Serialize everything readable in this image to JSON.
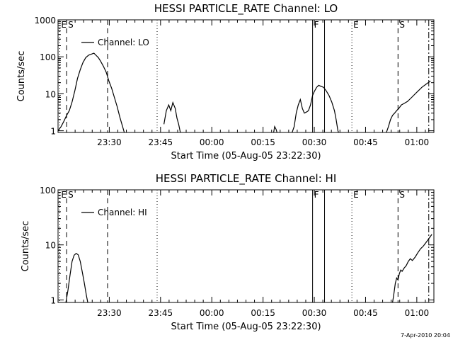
{
  "footer": {
    "timestamp": "7-Apr-2010 20:04"
  },
  "chart_data": [
    {
      "type": "line",
      "title": "HESSI PARTICLE_RATE Channel: LO",
      "xlabel": "Start Time (05-Aug-05 23:22:30)",
      "ylabel": "Counts/sec",
      "yscale": "log",
      "xlim": [
        -7.5,
        102.5
      ],
      "ylim": [
        0.9,
        1000
      ],
      "x_ticks": [
        {
          "x": 7.5,
          "label": "23:30"
        },
        {
          "x": 22.5,
          "label": "23:45"
        },
        {
          "x": 37.5,
          "label": "00:00"
        },
        {
          "x": 52.5,
          "label": "00:15"
        },
        {
          "x": 67.5,
          "label": "00:30"
        },
        {
          "x": 82.5,
          "label": "00:45"
        },
        {
          "x": 97.5,
          "label": "01:00"
        }
      ],
      "y_ticks": [
        {
          "y": 1,
          "label": "1"
        },
        {
          "y": 10,
          "label": "10"
        },
        {
          "y": 100,
          "label": "100"
        },
        {
          "y": 1000,
          "label": "1000"
        }
      ],
      "legend": {
        "position": "top-left",
        "entries": [
          "Channel: LO"
        ]
      },
      "markers": [
        {
          "x": -7.0,
          "label": "E",
          "style": "dotted"
        },
        {
          "x": -5.0,
          "label": "S",
          "style": "dashed"
        },
        {
          "x": 7.0,
          "label": "",
          "style": "dashed"
        },
        {
          "x": 21.5,
          "label": "",
          "style": "dotted"
        },
        {
          "x": 67.0,
          "label": "F",
          "style": "solid"
        },
        {
          "x": 70.5,
          "label": "",
          "style": "solid"
        },
        {
          "x": 78.5,
          "label": "E",
          "style": "dotted"
        },
        {
          "x": 92.0,
          "label": "S",
          "style": "dashed"
        },
        {
          "x": 101.0,
          "label": "",
          "style": "dashdot"
        }
      ],
      "series": [
        {
          "name": "Channel: LO",
          "segments": [
            [
              [
                -7.5,
                1
              ],
              [
                -6.6,
                1.3
              ],
              [
                -5.8,
                1.8
              ],
              [
                -5,
                2.6
              ],
              [
                -4.2,
                3.5
              ],
              [
                -3.4,
                6
              ],
              [
                -2.6,
                12
              ],
              [
                -1.8,
                26
              ],
              [
                -1,
                45
              ],
              [
                -0.2,
                70
              ],
              [
                0.6,
                95
              ],
              [
                1.4,
                110
              ],
              [
                2.2,
                118
              ],
              [
                3,
                125
              ],
              [
                3.6,
                110
              ],
              [
                4.3,
                95
              ],
              [
                5,
                75
              ],
              [
                5.8,
                55
              ],
              [
                6.6,
                38
              ],
              [
                7.4,
                22
              ],
              [
                8.2,
                14
              ],
              [
                9,
                8
              ],
              [
                9.8,
                4.5
              ],
              [
                10.6,
                2.3
              ],
              [
                11.4,
                1.3
              ],
              [
                11.9,
                0.9
              ]
            ],
            [
              [
                23.5,
                1.5
              ],
              [
                24.2,
                3.5
              ],
              [
                24.9,
                5
              ],
              [
                25.5,
                3.5
              ],
              [
                26.1,
                5.8
              ],
              [
                26.8,
                4
              ],
              [
                27.3,
                2.2
              ],
              [
                27.8,
                1.5
              ],
              [
                28.3,
                0.9
              ]
            ],
            [
              [
                55.6,
                0.9
              ],
              [
                55.9,
                1.3
              ],
              [
                56.3,
                1.1
              ],
              [
                56.6,
                0.9
              ]
            ],
            [
              [
                61,
                0.9
              ],
              [
                61.6,
                1.3
              ],
              [
                62.2,
                3
              ],
              [
                62.8,
                5
              ],
              [
                63.4,
                7
              ],
              [
                64,
                4
              ],
              [
                64.6,
                3
              ],
              [
                65.2,
                3.2
              ],
              [
                65.8,
                3.5
              ],
              [
                66.4,
                5
              ],
              [
                67,
                9
              ],
              [
                67.6,
                12
              ],
              [
                68.2,
                15
              ],
              [
                68.8,
                17
              ],
              [
                69.4,
                16
              ],
              [
                70.2,
                15
              ],
              [
                71,
                12
              ],
              [
                71.8,
                9
              ],
              [
                72.6,
                6
              ],
              [
                73.4,
                3.5
              ],
              [
                73.9,
                2
              ],
              [
                74.4,
                1
              ],
              [
                74.6,
                0.9
              ]
            ],
            [
              [
                88.6,
                0.9
              ],
              [
                89.2,
                1.3
              ],
              [
                89.8,
                2
              ],
              [
                90.4,
                2.6
              ],
              [
                91,
                3
              ],
              [
                91.6,
                3.5
              ],
              [
                92.2,
                4
              ],
              [
                93,
                5
              ],
              [
                93.8,
                5.5
              ],
              [
                94.8,
                6.2
              ],
              [
                96,
                8
              ],
              [
                97.5,
                11
              ],
              [
                99,
                15
              ],
              [
                100.5,
                19
              ],
              [
                101.5,
                22
              ]
            ]
          ]
        }
      ]
    },
    {
      "type": "line",
      "title": "HESSI PARTICLE_RATE Channel: HI",
      "xlabel": "Start Time (05-Aug-05 23:22:30)",
      "ylabel": "Counts/sec",
      "yscale": "log",
      "xlim": [
        -7.5,
        102.5
      ],
      "ylim": [
        0.9,
        100
      ],
      "x_ticks": [
        {
          "x": 7.5,
          "label": "23:30"
        },
        {
          "x": 22.5,
          "label": "23:45"
        },
        {
          "x": 37.5,
          "label": "00:00"
        },
        {
          "x": 52.5,
          "label": "00:15"
        },
        {
          "x": 67.5,
          "label": "00:30"
        },
        {
          "x": 82.5,
          "label": "00:45"
        },
        {
          "x": 97.5,
          "label": "01:00"
        }
      ],
      "y_ticks": [
        {
          "y": 1,
          "label": "1"
        },
        {
          "y": 10,
          "label": "10"
        },
        {
          "y": 100,
          "label": "100"
        }
      ],
      "legend": {
        "position": "top-left",
        "entries": [
          "Channel: HI"
        ]
      },
      "markers": [
        {
          "x": -7.0,
          "label": "E",
          "style": "dotted"
        },
        {
          "x": -5.0,
          "label": "S",
          "style": "dashed"
        },
        {
          "x": 7.0,
          "label": "",
          "style": "dashed"
        },
        {
          "x": 21.5,
          "label": "",
          "style": "dotted"
        },
        {
          "x": 67.0,
          "label": "F",
          "style": "solid"
        },
        {
          "x": 70.5,
          "label": "",
          "style": "solid"
        },
        {
          "x": 78.5,
          "label": "E",
          "style": "dotted"
        },
        {
          "x": 92.0,
          "label": "S",
          "style": "dashed"
        },
        {
          "x": 101.0,
          "label": "",
          "style": "dashdot"
        }
      ],
      "series": [
        {
          "name": "Channel: HI",
          "segments": [
            [
              [
                -5.2,
                0.9
              ],
              [
                -4.6,
                1.5
              ],
              [
                -4,
                2.8
              ],
              [
                -3.4,
                5
              ],
              [
                -2.8,
                6.5
              ],
              [
                -2.2,
                7
              ],
              [
                -1.6,
                6.6
              ],
              [
                -1,
                5
              ],
              [
                -0.4,
                3.2
              ],
              [
                0.2,
                2
              ],
              [
                0.8,
                1.2
              ],
              [
                1.2,
                0.9
              ]
            ],
            [
              [
                90.4,
                0.9
              ],
              [
                90.8,
                1.3
              ],
              [
                91.2,
                2
              ],
              [
                91.6,
                2.5
              ],
              [
                92,
                2.3
              ],
              [
                92.4,
                3
              ],
              [
                92.8,
                3.5
              ],
              [
                93.2,
                3.3
              ],
              [
                93.8,
                3.8
              ],
              [
                94.4,
                4.2
              ],
              [
                95,
                5
              ],
              [
                95.6,
                5.6
              ],
              [
                96.2,
                5.2
              ],
              [
                97,
                6
              ],
              [
                97.8,
                7.2
              ],
              [
                98.6,
                8.5
              ],
              [
                99.4,
                9.5
              ],
              [
                100.4,
                11.5
              ],
              [
                101.4,
                14
              ],
              [
                101.9,
                15.5
              ]
            ]
          ]
        }
      ]
    }
  ]
}
